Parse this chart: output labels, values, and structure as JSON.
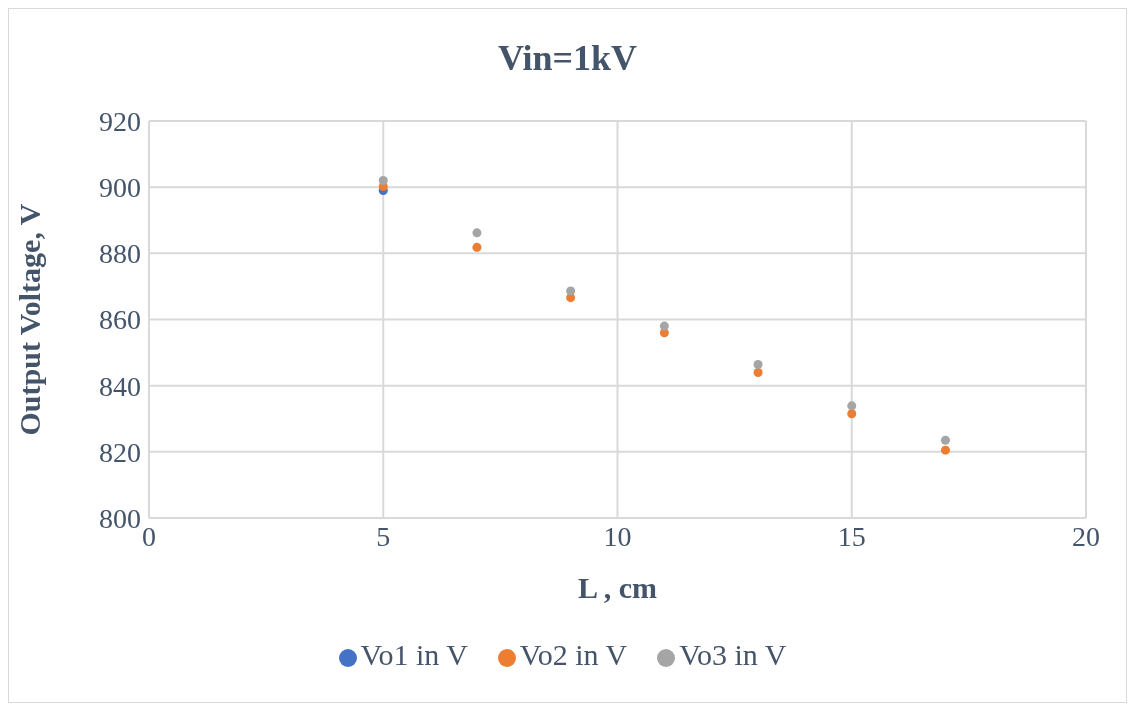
{
  "chart_data": {
    "type": "scatter",
    "title": "Vin=1kV",
    "xlabel": "L , cm",
    "ylabel": "Output Voltage, V",
    "x": [
      5,
      7,
      9,
      11,
      13,
      15,
      17
    ],
    "series": [
      {
        "name": "Vo1 in V",
        "color": "#4472c4",
        "values": [
          899,
          null,
          null,
          null,
          null,
          null,
          null
        ]
      },
      {
        "name": "Vo2 in V",
        "color": "#ed7d31",
        "values": [
          900.2,
          881.8,
          866.6,
          856,
          844,
          831.5,
          820.5
        ]
      },
      {
        "name": "Vo3 in V",
        "color": "#a5a5a5",
        "values": [
          902,
          886.2,
          868.6,
          858,
          846.4,
          833.9,
          823.5
        ]
      }
    ],
    "xlim": [
      0,
      20
    ],
    "xticks": [
      0,
      5,
      10,
      15,
      20
    ],
    "ylim": [
      800,
      920
    ],
    "yticks": [
      800,
      820,
      840,
      860,
      880,
      900,
      920
    ],
    "grid": true,
    "legend": "bottom",
    "marker": "circle"
  }
}
